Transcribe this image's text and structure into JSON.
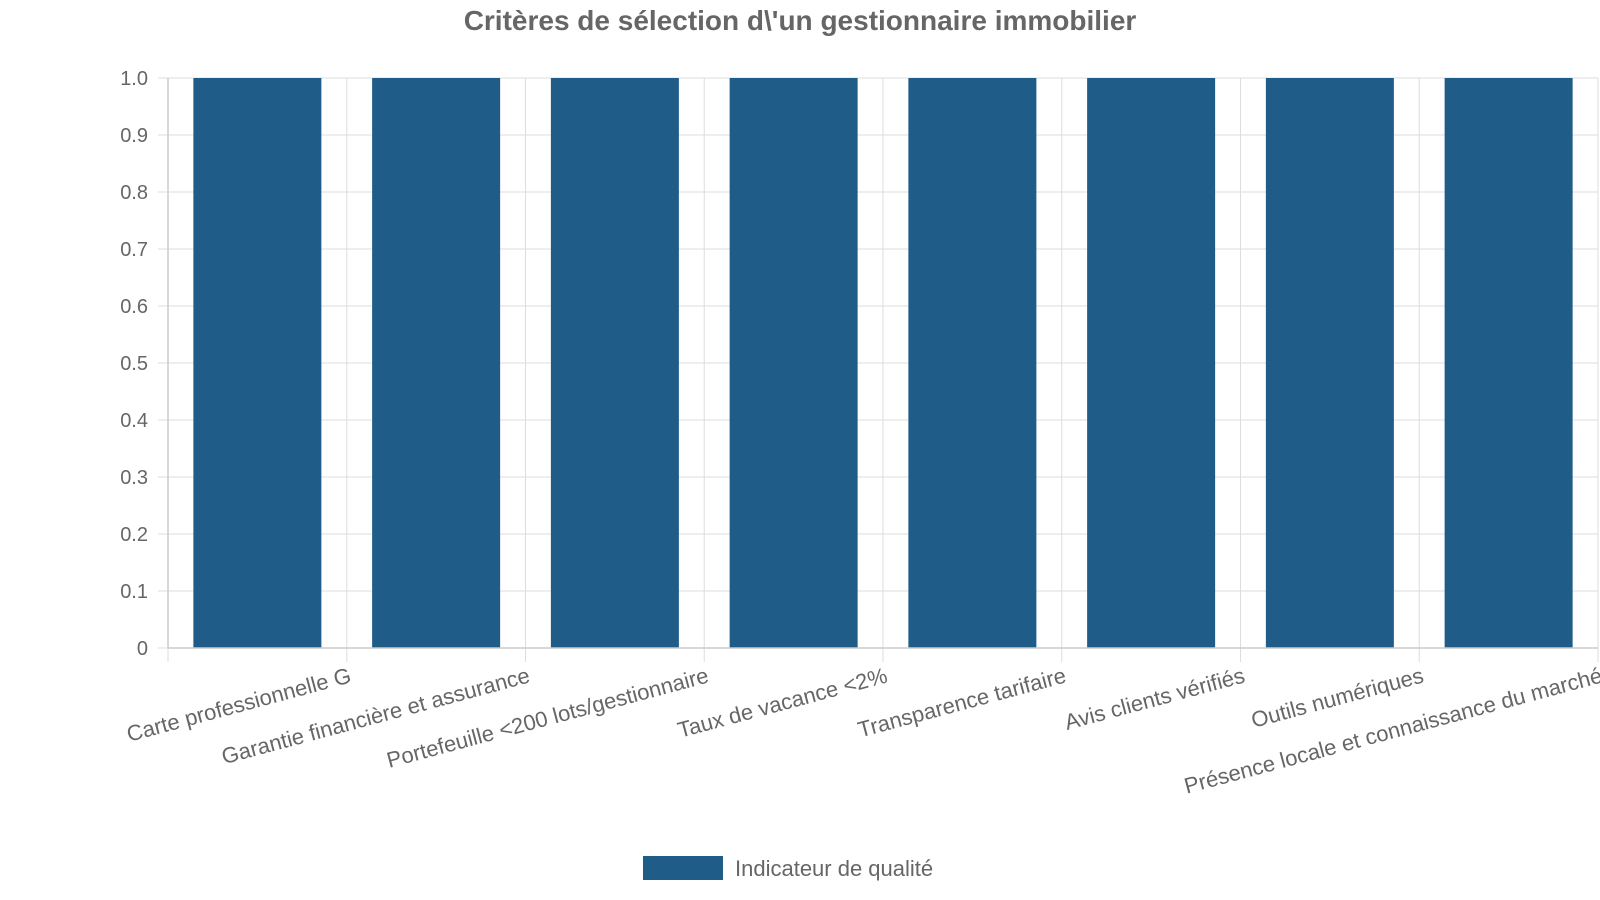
{
  "chart_data": {
    "type": "bar",
    "title": "Critères de sélection d\\'un gestionnaire immobilier",
    "xlabel": "",
    "ylabel": "",
    "categories": [
      "Carte professionnelle G",
      "Garantie financière et assurance",
      "Portefeuille <200 lots/gestionnaire",
      "Taux de vacance <2%",
      "Transparence tarifaire",
      "Avis clients vérifiés",
      "Outils numériques",
      "Présence locale et connaissance du marché"
    ],
    "series": [
      {
        "name": "Indicateur de qualité",
        "values": [
          1,
          1,
          1,
          1,
          1,
          1,
          1,
          1
        ],
        "color": "#1f5c87"
      }
    ],
    "ylim": [
      0,
      1
    ],
    "yticks": [
      "0",
      "0.1",
      "0.2",
      "0.3",
      "0.4",
      "0.5",
      "0.6",
      "0.7",
      "0.8",
      "0.9",
      "1.0"
    ],
    "grid": true,
    "legend_position": "bottom-center"
  }
}
